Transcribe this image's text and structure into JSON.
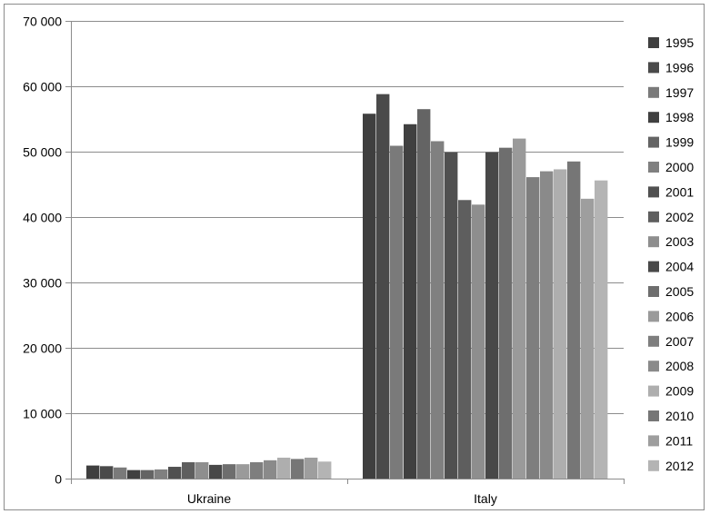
{
  "chart_data": {
    "type": "bar",
    "title": "",
    "xlabel": "",
    "ylabel": "",
    "categories": [
      "Ukraine",
      "Italy"
    ],
    "ylim": [
      0,
      70000
    ],
    "yticks": [
      0,
      10000,
      20000,
      30000,
      40000,
      50000,
      60000,
      70000
    ],
    "ytick_labels": [
      "0",
      "10 000",
      "20 000",
      "30 000",
      "40 000",
      "50 000",
      "60 000",
      "70 000"
    ],
    "grid": true,
    "legend_position": "right",
    "series": [
      {
        "name": "1995",
        "color": "#3f3f3f",
        "values": [
          2000,
          55800
        ]
      },
      {
        "name": "1996",
        "color": "#4a4a4a",
        "values": [
          1900,
          58800
        ]
      },
      {
        "name": "1997",
        "color": "#7a7a7a",
        "values": [
          1700,
          50900
        ]
      },
      {
        "name": "1998",
        "color": "#404040",
        "values": [
          1300,
          54200
        ]
      },
      {
        "name": "1999",
        "color": "#646464",
        "values": [
          1300,
          56500
        ]
      },
      {
        "name": "2000",
        "color": "#808080",
        "values": [
          1400,
          51600
        ]
      },
      {
        "name": "2001",
        "color": "#505050",
        "values": [
          1800,
          49900
        ]
      },
      {
        "name": "2002",
        "color": "#5e5e5e",
        "values": [
          2500,
          42600
        ]
      },
      {
        "name": "2003",
        "color": "#8e8e8e",
        "values": [
          2500,
          41900
        ]
      },
      {
        "name": "2004",
        "color": "#484848",
        "values": [
          2100,
          49900
        ]
      },
      {
        "name": "2005",
        "color": "#6e6e6e",
        "values": [
          2200,
          50600
        ]
      },
      {
        "name": "2006",
        "color": "#9a9a9a",
        "values": [
          2200,
          52000
        ]
      },
      {
        "name": "2007",
        "color": "#7e7e7e",
        "values": [
          2500,
          46100
        ]
      },
      {
        "name": "2008",
        "color": "#8a8a8a",
        "values": [
          2800,
          47000
        ]
      },
      {
        "name": "2009",
        "color": "#aeaeae",
        "values": [
          3200,
          47300
        ]
      },
      {
        "name": "2010",
        "color": "#767676",
        "values": [
          3000,
          48500
        ]
      },
      {
        "name": "2011",
        "color": "#9e9e9e",
        "values": [
          3200,
          42800
        ]
      },
      {
        "name": "2012",
        "color": "#b4b4b4",
        "values": [
          2600,
          45600
        ]
      }
    ]
  }
}
